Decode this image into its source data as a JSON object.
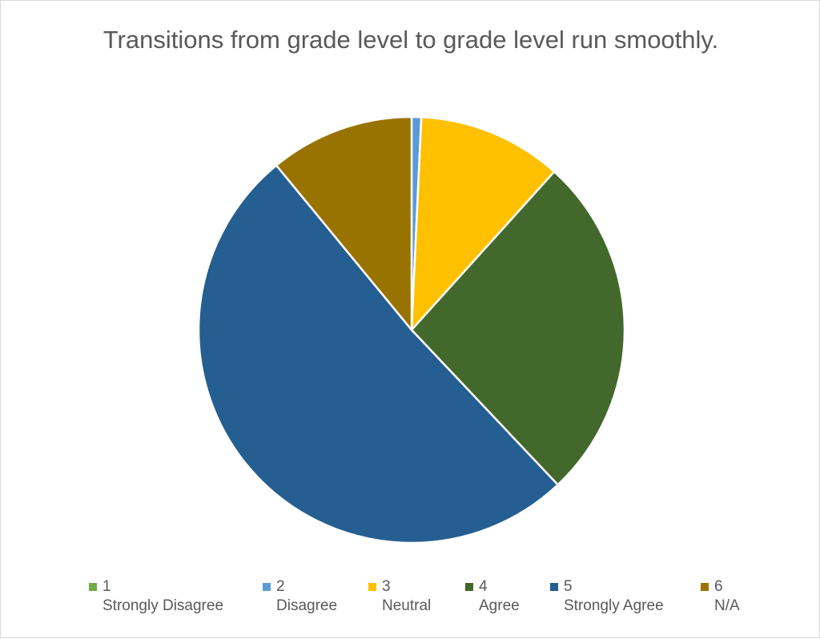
{
  "chart_data": {
    "type": "pie",
    "title": "Transitions from grade level to grade level run smoothly.",
    "categories": [
      "1\nStrongly Disagree",
      "2\nDisagree",
      "3\nNeutral",
      "4\nAgree",
      "5\nStrongly Agree",
      "6\nN/A"
    ],
    "values": [
      0,
      1,
      15,
      36,
      70,
      15
    ],
    "colors": [
      "#70ad47",
      "#5b9bd5",
      "#ffc000",
      "#43682b",
      "#255e91",
      "#997300"
    ],
    "legend": "bottom"
  }
}
